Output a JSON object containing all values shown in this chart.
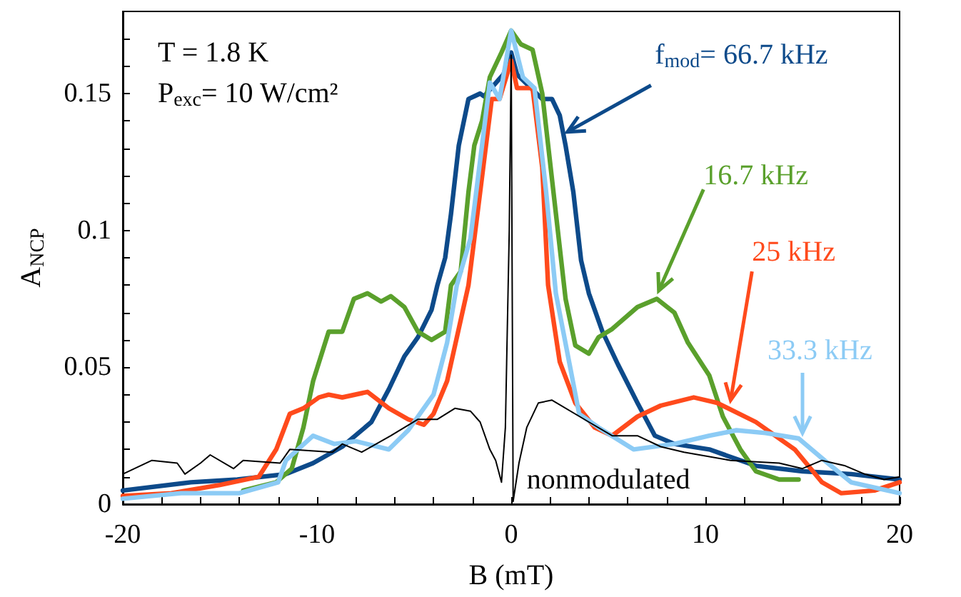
{
  "chart_data": {
    "type": "line",
    "xlabel": "B (mT)",
    "ylabel": "A$_{NCP}$",
    "xlim": [
      -20,
      20
    ],
    "xticks": [
      -20,
      {
        "value": -18,
        "label": null
      },
      {
        "value": -16,
        "label": null
      },
      {
        "value": -14,
        "label": null
      },
      {
        "value": -12,
        "label": null
      },
      -10,
      {
        "value": -8,
        "label": null
      },
      {
        "value": -6,
        "label": null
      },
      {
        "value": -4,
        "label": null
      },
      {
        "value": -2,
        "label": null
      },
      0,
      {
        "value": 2,
        "label": null
      },
      {
        "value": 4,
        "label": null
      },
      {
        "value": 6,
        "label": null
      },
      {
        "value": 8,
        "label": null
      },
      10,
      {
        "value": 12,
        "label": null
      },
      {
        "value": 14,
        "label": null
      },
      {
        "value": 16,
        "label": null
      },
      {
        "value": 18,
        "label": null
      },
      20
    ],
    "ylim": [
      0,
      0.18
    ],
    "yticks": [
      0,
      {
        "value": 0.01,
        "label": null
      },
      {
        "value": 0.02,
        "label": null
      },
      {
        "value": 0.03,
        "label": null
      },
      {
        "value": 0.04,
        "label": null
      },
      0.05,
      {
        "value": 0.06,
        "label": null
      },
      {
        "value": 0.07,
        "label": null
      },
      {
        "value": 0.08,
        "label": null
      },
      {
        "value": 0.09,
        "label": null
      },
      0.1,
      {
        "value": 0.11,
        "label": null
      },
      {
        "value": 0.12,
        "label": null
      },
      {
        "value": 0.13,
        "label": null
      },
      {
        "value": 0.14,
        "label": null
      },
      0.15,
      {
        "value": 0.16,
        "label": null
      },
      {
        "value": 0.17,
        "label": null
      }
    ],
    "grid": false,
    "legend": false,
    "marker": "none",
    "line_style": "solid",
    "annotations": [
      "T = 1.8 K",
      "P$_{exc}$= 10 W/cm²"
    ],
    "series": [
      {
        "name": "f$_{mod}$= 66.7 kHz",
        "color": "#0d4a8a",
        "x": [
          -20,
          -16.5,
          -14.1,
          -11.6,
          -10.2,
          -8.7,
          -7.2,
          -6.3,
          -5.5,
          -4.8,
          -4.1,
          -3.8,
          -3.4,
          -3.1,
          -2.7,
          -2.2,
          -1.6,
          -1.4,
          -0.4,
          0,
          0.3,
          1.6,
          2.1,
          2.5,
          2.8,
          3.2,
          3.6,
          4.0,
          4.7,
          5.5,
          6.5,
          7.4,
          8.4,
          10.2,
          12.6,
          15.0,
          17.5,
          20
        ],
        "values": [
          0.005,
          0.008,
          0.009,
          0.011,
          0.015,
          0.021,
          0.03,
          0.042,
          0.054,
          0.061,
          0.071,
          0.08,
          0.09,
          0.106,
          0.131,
          0.148,
          0.15,
          0.149,
          0.157,
          0.165,
          0.157,
          0.148,
          0.148,
          0.142,
          0.131,
          0.114,
          0.089,
          0.077,
          0.063,
          0.051,
          0.037,
          0.025,
          0.022,
          0.02,
          0.014,
          0.012,
          0.011,
          0.009
        ]
      },
      {
        "name": "16.7 kHz",
        "color": "#5aa02c",
        "x": [
          -13.8,
          -12.1,
          -11.3,
          -10.7,
          -10.2,
          -9.4,
          -8.7,
          -8.1,
          -7.4,
          -6.7,
          -6.2,
          -5.5,
          -4.8,
          -4.1,
          -3.4,
          -3.1,
          -2.6,
          -2.2,
          -1.9,
          -1.5,
          -1.1,
          -0.5,
          0,
          0.5,
          1.1,
          1.6,
          2.0,
          2.4,
          2.8,
          3.3,
          4.0,
          4.5,
          5.2,
          6.5,
          7.5,
          8.4,
          9.1,
          10.2,
          10.9,
          11.8,
          12.6,
          13.8,
          14.8
        ],
        "values": [
          0.005,
          0.008,
          0.013,
          0.028,
          0.045,
          0.063,
          0.063,
          0.075,
          0.077,
          0.074,
          0.076,
          0.072,
          0.063,
          0.06,
          0.063,
          0.08,
          0.085,
          0.114,
          0.131,
          0.14,
          0.156,
          0.165,
          0.173,
          0.168,
          0.166,
          0.15,
          0.125,
          0.1,
          0.075,
          0.058,
          0.055,
          0.061,
          0.064,
          0.072,
          0.075,
          0.07,
          0.059,
          0.047,
          0.032,
          0.02,
          0.012,
          0.009,
          0.009
        ]
      },
      {
        "name": "25 kHz",
        "color": "#ff4a1c",
        "x": [
          -20,
          -17.5,
          -15,
          -13,
          -12.1,
          -11.4,
          -10.7,
          -9.9,
          -9.4,
          -8.7,
          -7.4,
          -6.3,
          -5.3,
          -4.5,
          -4.0,
          -3.3,
          -2.2,
          -1.6,
          -1.0,
          -0.6,
          0,
          0.3,
          1.1,
          1.6,
          1.9,
          2.5,
          3.3,
          4.3,
          5.2,
          6.5,
          7.7,
          9.4,
          10.6,
          12.6,
          14.6,
          16.0,
          17.0,
          18.7,
          20
        ],
        "values": [
          0.003,
          0.004,
          0.007,
          0.01,
          0.02,
          0.033,
          0.035,
          0.039,
          0.04,
          0.039,
          0.041,
          0.035,
          0.031,
          0.029,
          0.033,
          0.045,
          0.08,
          0.114,
          0.148,
          0.148,
          0.162,
          0.152,
          0.152,
          0.123,
          0.08,
          0.052,
          0.037,
          0.028,
          0.025,
          0.032,
          0.036,
          0.039,
          0.037,
          0.03,
          0.02,
          0.008,
          0.004,
          0.005,
          0.008
        ]
      },
      {
        "name": "33.3 kHz",
        "color": "#8ccbf5",
        "x": [
          -20,
          -17,
          -14,
          -12,
          -11.6,
          -10.2,
          -9.1,
          -8.0,
          -6.3,
          -5.3,
          -4.0,
          -3.3,
          -2.8,
          -2.1,
          -1.1,
          -0.6,
          0,
          0.6,
          1.2,
          1.8,
          2.3,
          3.5,
          4.5,
          6.3,
          8.4,
          10.2,
          11.6,
          13.1,
          14.8,
          16.3,
          17.5,
          20
        ],
        "values": [
          0.002,
          0.004,
          0.004,
          0.008,
          0.016,
          0.025,
          0.022,
          0.023,
          0.02,
          0.027,
          0.04,
          0.059,
          0.08,
          0.097,
          0.154,
          0.148,
          0.173,
          0.156,
          0.152,
          0.114,
          0.077,
          0.033,
          0.028,
          0.02,
          0.022,
          0.025,
          0.027,
          0.026,
          0.024,
          0.015,
          0.008,
          0.004
        ]
      },
      {
        "name": "nonmodulated",
        "color": "#000000",
        "x": [
          -20,
          -18.5,
          -17.2,
          -16.8,
          -16.0,
          -15.5,
          -14.3,
          -13.8,
          -11.9,
          -11.4,
          -9.2,
          -8.7,
          -7.7,
          -6.2,
          -4.8,
          -3.8,
          -2.9,
          -2.1,
          -1.6,
          -1.1,
          -0.8,
          -0.5,
          -0.3,
          -0.1,
          0,
          0.1,
          0.4,
          0.8,
          1.4,
          2.1,
          4.0,
          5.2,
          6.5,
          7.7,
          8.9,
          11.3,
          13.8,
          15.0,
          16.0,
          17.2,
          18.2,
          19.2,
          20
        ],
        "values": [
          0.011,
          0.016,
          0.015,
          0.011,
          0.015,
          0.018,
          0.013,
          0.016,
          0.015,
          0.02,
          0.019,
          0.022,
          0.019,
          0.025,
          0.031,
          0.031,
          0.035,
          0.034,
          0.03,
          0.02,
          0.016,
          0.008,
          0.028,
          0.1,
          0.164,
          0.001,
          0.015,
          0.028,
          0.037,
          0.038,
          0.03,
          0.025,
          0.025,
          0.021,
          0.019,
          0.016,
          0.015,
          0.013,
          0.016,
          0.014,
          0.011,
          0.009,
          0.01
        ]
      }
    ]
  }
}
